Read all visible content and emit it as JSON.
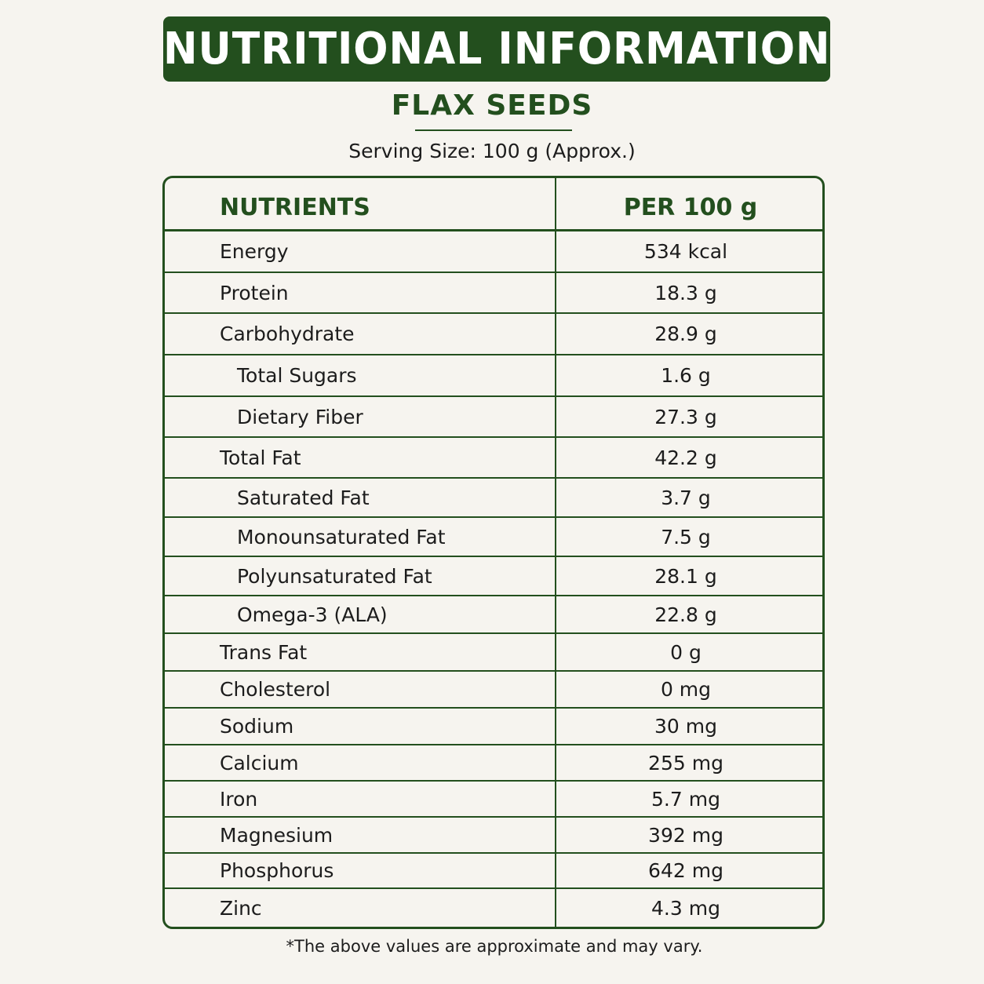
{
  "header": {
    "title": "NUTRITIONAL INFORMATION",
    "product_name": "FLAX SEEDS",
    "serving": "Serving Size: 100 g (Approx.)"
  },
  "table": {
    "columns": [
      "NUTRIENTS",
      "PER 100 g"
    ],
    "rows": [
      {
        "name": "Energy",
        "value": "534 kcal",
        "sub": false
      },
      {
        "name": "Protein",
        "value": "18.3 g",
        "sub": false
      },
      {
        "name": "Carbohydrate",
        "value": "28.9 g",
        "sub": false
      },
      {
        "name": "Total Sugars",
        "value": "1.6 g",
        "sub": true
      },
      {
        "name": "Dietary Fiber",
        "value": "27.3 g",
        "sub": true
      },
      {
        "name": "Total Fat",
        "value": "42.2 g",
        "sub": false
      },
      {
        "name": "Saturated Fat",
        "value": "3.7 g",
        "sub": true
      },
      {
        "name": "Monounsaturated Fat",
        "value": "7.5 g",
        "sub": true
      },
      {
        "name": "Polyunsaturated Fat",
        "value": "28.1 g",
        "sub": true
      },
      {
        "name": "Omega-3 (ALA)",
        "value": "22.8 g",
        "sub": true
      },
      {
        "name": "Trans Fat",
        "value": "0 g",
        "sub": false
      },
      {
        "name": "Cholesterol",
        "value": "0 mg",
        "sub": false
      },
      {
        "name": "Sodium",
        "value": "30 mg",
        "sub": false
      },
      {
        "name": "Calcium",
        "value": "255 mg",
        "sub": false
      },
      {
        "name": "Iron",
        "value": "5.7 mg",
        "sub": false
      },
      {
        "name": "Magnesium",
        "value": "392 mg",
        "sub": false
      },
      {
        "name": "Phosphorus",
        "value": "642 mg",
        "sub": false
      },
      {
        "name": "Zinc",
        "value": "4.3 mg",
        "sub": false
      }
    ]
  },
  "footnote": "*The above values are approximate and may vary.",
  "colors": {
    "brand_green": "#234f1e",
    "background": "#f6f4ef",
    "text": "#1c1c1c"
  }
}
